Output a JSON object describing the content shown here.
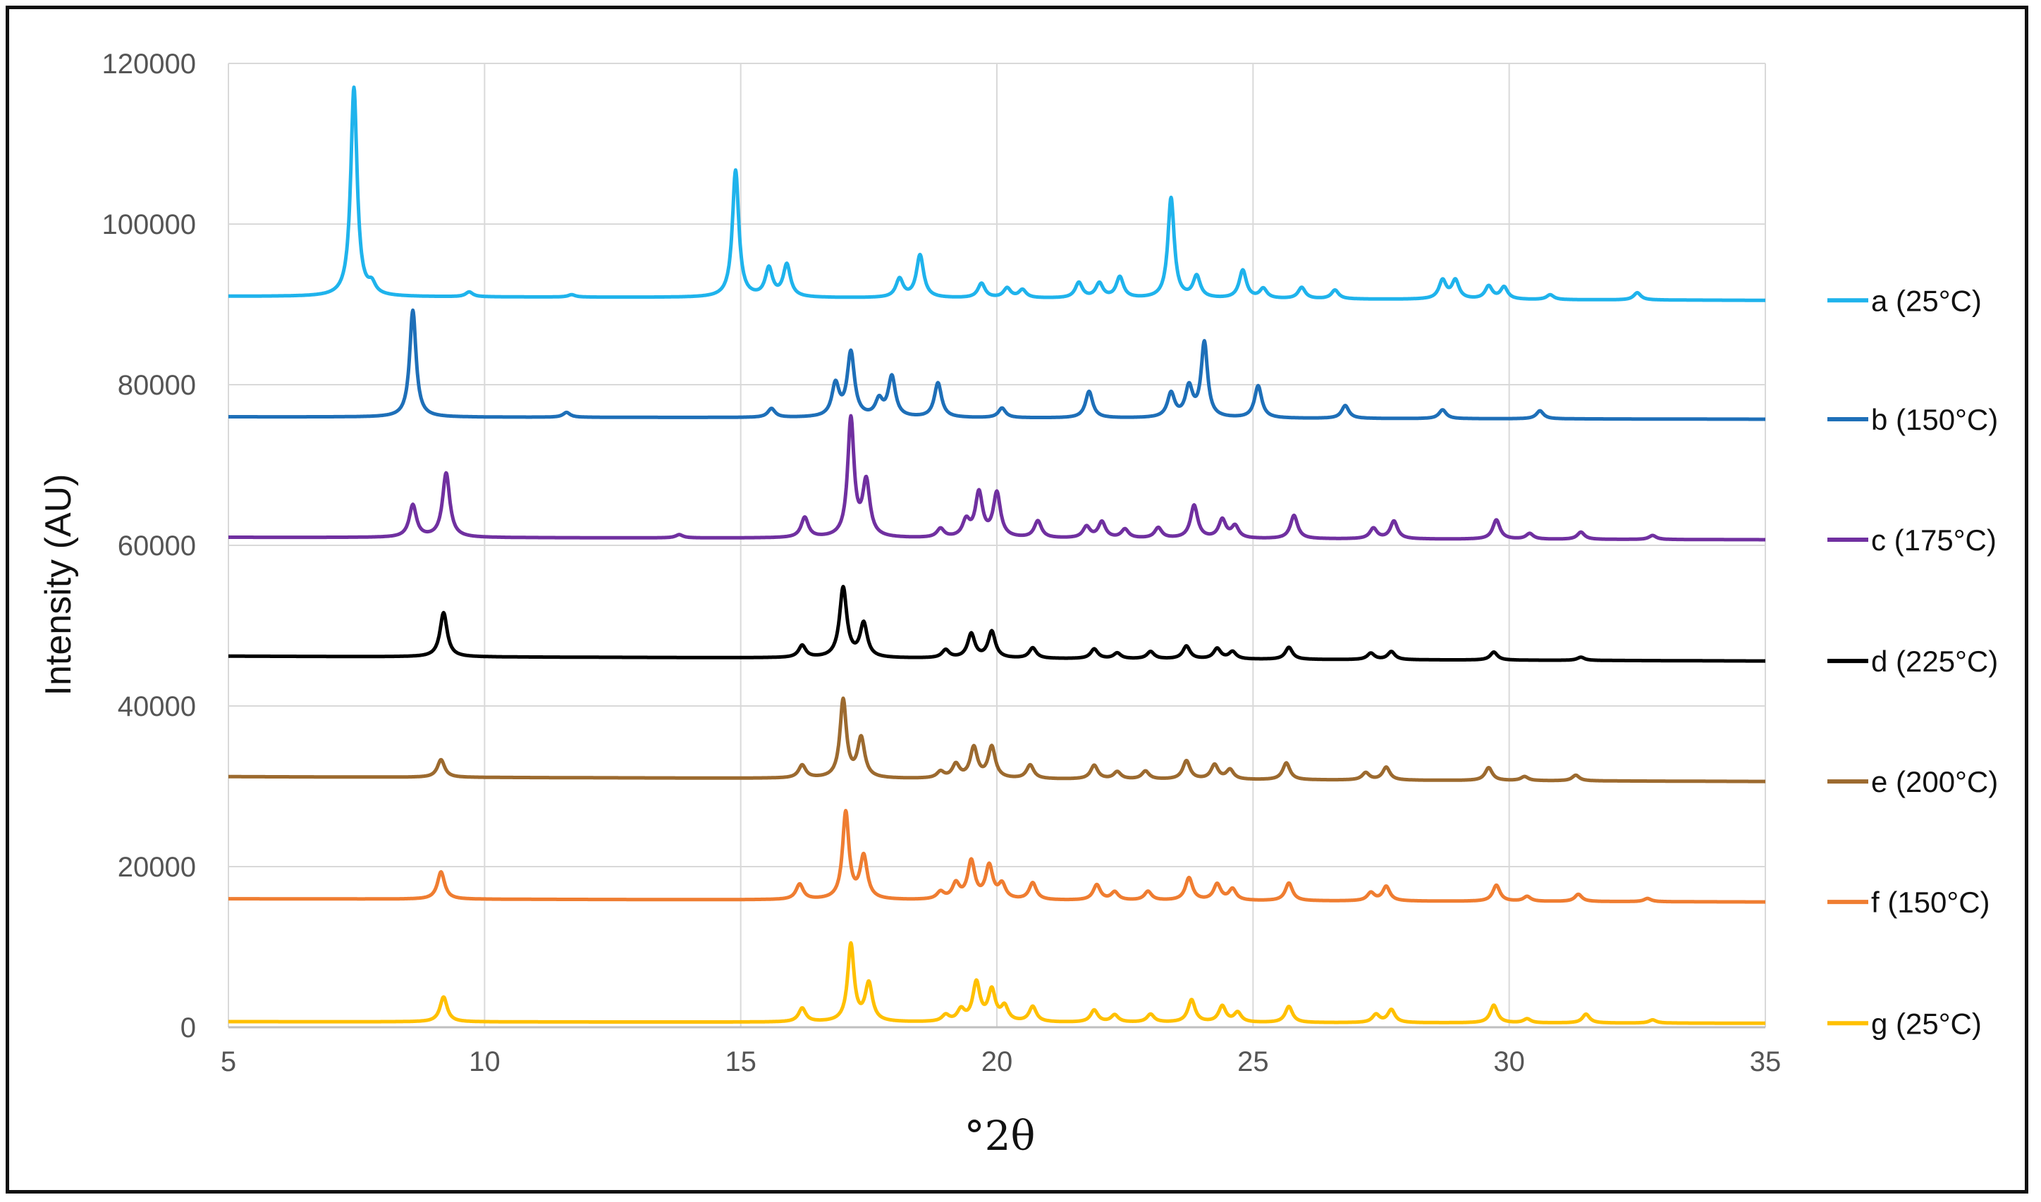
{
  "chart_data": {
    "type": "line",
    "xlabel": "°2θ",
    "ylabel": "Intensity (AU)",
    "xlim": [
      5,
      35
    ],
    "ylim": [
      0,
      120000
    ],
    "grid": true,
    "legend_position": "right",
    "x_ticks": [
      "5",
      "10",
      "15",
      "20",
      "25",
      "30",
      "35"
    ],
    "y_ticks": [
      "0",
      "20000",
      "40000",
      "60000",
      "80000",
      "100000",
      "120000"
    ],
    "series": [
      {
        "name": "a (25°C)",
        "color": "#1fb3ec",
        "baseline_start": 91000,
        "baseline_end": 90500,
        "peaks": [
          [
            7.45,
            26000
          ],
          [
            7.8,
            1200
          ],
          [
            9.7,
            600
          ],
          [
            11.7,
            300
          ],
          [
            14.9,
            15800
          ],
          [
            15.55,
            3500
          ],
          [
            15.9,
            4000
          ],
          [
            18.1,
            2300
          ],
          [
            18.5,
            5300
          ],
          [
            19.7,
            1800
          ],
          [
            20.2,
            1200
          ],
          [
            20.5,
            1000
          ],
          [
            21.6,
            1900
          ],
          [
            22.0,
            1800
          ],
          [
            22.4,
            2600
          ],
          [
            23.4,
            12500
          ],
          [
            23.9,
            2700
          ],
          [
            24.8,
            3500
          ],
          [
            25.2,
            1200
          ],
          [
            25.95,
            1400
          ],
          [
            26.6,
            1100
          ],
          [
            28.7,
            2300
          ],
          [
            28.95,
            2300
          ],
          [
            29.6,
            1600
          ],
          [
            29.9,
            1500
          ],
          [
            30.8,
            600
          ],
          [
            32.5,
            900
          ]
        ]
      },
      {
        "name": "b (150°C)",
        "color": "#1e6fb8",
        "baseline_start": 76000,
        "baseline_end": 75700,
        "peaks": [
          [
            8.6,
            13300
          ],
          [
            11.6,
            600
          ],
          [
            15.6,
            1100
          ],
          [
            16.85,
            4000
          ],
          [
            17.15,
            8000
          ],
          [
            17.7,
            2000
          ],
          [
            17.95,
            5000
          ],
          [
            18.85,
            4300
          ],
          [
            20.1,
            1200
          ],
          [
            21.8,
            3300
          ],
          [
            23.4,
            3000
          ],
          [
            23.75,
            3700
          ],
          [
            24.05,
            9300
          ],
          [
            25.1,
            4000
          ],
          [
            26.8,
            1600
          ],
          [
            28.7,
            1100
          ],
          [
            30.6,
            1000
          ]
        ]
      },
      {
        "name": "c (175°C)",
        "color": "#7030a0",
        "baseline_start": 61000,
        "baseline_end": 60700,
        "peaks": [
          [
            8.6,
            4000
          ],
          [
            9.25,
            8000
          ],
          [
            13.8,
            400
          ],
          [
            16.25,
            2500
          ],
          [
            17.15,
            14700
          ],
          [
            17.45,
            6800
          ],
          [
            18.9,
            1100
          ],
          [
            19.4,
            2000
          ],
          [
            19.65,
            5500
          ],
          [
            20.0,
            5500
          ],
          [
            20.8,
            2100
          ],
          [
            21.75,
            1400
          ],
          [
            22.05,
            2000
          ],
          [
            22.5,
            1100
          ],
          [
            23.15,
            1300
          ],
          [
            23.85,
            4100
          ],
          [
            24.4,
            2300
          ],
          [
            24.65,
            1500
          ],
          [
            25.8,
            2900
          ],
          [
            27.35,
            1300
          ],
          [
            27.75,
            2200
          ],
          [
            29.75,
            2400
          ],
          [
            30.4,
            700
          ],
          [
            31.4,
            900
          ],
          [
            32.8,
            500
          ]
        ]
      },
      {
        "name": "d (225°C)",
        "color": "#000000",
        "baseline_start": 46200,
        "baseline_end": 45600,
        "peaks": [
          [
            9.2,
            5500
          ],
          [
            16.2,
            1500
          ],
          [
            17.0,
            8700
          ],
          [
            17.4,
            4200
          ],
          [
            19.0,
            1000
          ],
          [
            19.5,
            3000
          ],
          [
            19.9,
            3300
          ],
          [
            20.7,
            1300
          ],
          [
            21.9,
            1200
          ],
          [
            22.35,
            700
          ],
          [
            23.0,
            900
          ],
          [
            23.7,
            1600
          ],
          [
            24.3,
            1300
          ],
          [
            24.6,
            900
          ],
          [
            25.7,
            1500
          ],
          [
            27.3,
            800
          ],
          [
            27.7,
            1000
          ],
          [
            29.7,
            1000
          ],
          [
            31.4,
            400
          ]
        ]
      },
      {
        "name": "e (200°C)",
        "color": "#9c6a2f",
        "baseline_start": 31200,
        "baseline_end": 30600,
        "peaks": [
          [
            9.15,
            2200
          ],
          [
            16.2,
            1600
          ],
          [
            17.0,
            9700
          ],
          [
            17.35,
            4900
          ],
          [
            18.9,
            800
          ],
          [
            19.2,
            1700
          ],
          [
            19.55,
            3800
          ],
          [
            19.9,
            3900
          ],
          [
            20.65,
            1700
          ],
          [
            21.9,
            1700
          ],
          [
            22.35,
            900
          ],
          [
            22.9,
            1000
          ],
          [
            23.7,
            2300
          ],
          [
            24.25,
            1800
          ],
          [
            24.55,
            1200
          ],
          [
            25.65,
            2100
          ],
          [
            27.2,
            900
          ],
          [
            27.6,
            1600
          ],
          [
            29.6,
            1600
          ],
          [
            30.3,
            500
          ],
          [
            31.3,
            700
          ]
        ]
      },
      {
        "name": "f (150°C)",
        "color": "#ef7d31",
        "baseline_start": 16000,
        "baseline_end": 15600,
        "peaks": [
          [
            9.15,
            3400
          ],
          [
            16.15,
            1900
          ],
          [
            17.05,
            10800
          ],
          [
            17.4,
            5300
          ],
          [
            18.9,
            900
          ],
          [
            19.2,
            1900
          ],
          [
            19.5,
            4700
          ],
          [
            19.85,
            4100
          ],
          [
            20.1,
            1800
          ],
          [
            20.7,
            2100
          ],
          [
            21.95,
            1900
          ],
          [
            22.3,
            1000
          ],
          [
            22.95,
            1100
          ],
          [
            23.75,
            2800
          ],
          [
            24.3,
            2000
          ],
          [
            24.6,
            1400
          ],
          [
            25.7,
            2200
          ],
          [
            27.3,
            1000
          ],
          [
            27.6,
            1800
          ],
          [
            29.75,
            2000
          ],
          [
            30.35,
            600
          ],
          [
            31.35,
            900
          ],
          [
            32.7,
            400
          ]
        ]
      },
      {
        "name": "g (25°C)",
        "color": "#ffc000",
        "baseline_start": 700,
        "baseline_end": 500,
        "peaks": [
          [
            9.2,
            3100
          ],
          [
            16.2,
            1700
          ],
          [
            17.15,
            9600
          ],
          [
            17.5,
            4700
          ],
          [
            19.0,
            800
          ],
          [
            19.3,
            1400
          ],
          [
            19.6,
            4800
          ],
          [
            19.9,
            3800
          ],
          [
            20.15,
            1800
          ],
          [
            20.7,
            1900
          ],
          [
            21.9,
            1500
          ],
          [
            22.3,
            900
          ],
          [
            23.0,
            1000
          ],
          [
            23.8,
            2800
          ],
          [
            24.4,
            2000
          ],
          [
            24.7,
            1200
          ],
          [
            25.7,
            2000
          ],
          [
            27.4,
            1000
          ],
          [
            27.7,
            1600
          ],
          [
            29.7,
            2200
          ],
          [
            30.35,
            500
          ],
          [
            31.5,
            1100
          ],
          [
            32.8,
            400
          ]
        ]
      }
    ]
  }
}
